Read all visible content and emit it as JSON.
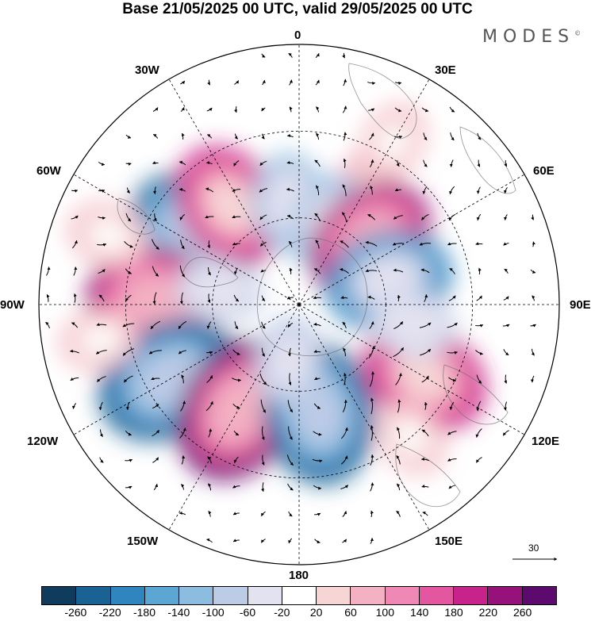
{
  "title": "Base 21/05/2025 00 UTC, valid 29/05/2025 00 UTC",
  "brand": "MODES",
  "brand_mark": "©",
  "longitude_labels": {
    "top": "0",
    "upper_left": "30W",
    "upper_right": "30E",
    "mid_upper_left": "60W",
    "mid_upper_right": "60E",
    "left": "90W",
    "right": "90E",
    "mid_lower_left": "120W",
    "mid_lower_right": "120E",
    "lower_left": "150W",
    "lower_right": "150E",
    "bottom": "180"
  },
  "vector_scale_label": "30",
  "colorbar": {
    "colors": [
      "#0f3b5c",
      "#1a6294",
      "#2f86bf",
      "#5ba6d2",
      "#8cbde0",
      "#bccbe6",
      "#e3e2f0",
      "#ffffff",
      "#f7d5d5",
      "#f3b1c3",
      "#ef88b4",
      "#e2579f",
      "#c7238b",
      "#96127a",
      "#5c0a6d"
    ],
    "labels": [
      "-260",
      "-220",
      "-180",
      "-140",
      "-100",
      "-60",
      "-20",
      "20",
      "60",
      "100",
      "140",
      "180",
      "220",
      "260"
    ]
  },
  "anomaly_centers": [
    {
      "lon": -55,
      "lat": -46,
      "value": -230
    },
    {
      "lon": -35,
      "lat": -48,
      "value": 200
    },
    {
      "lon": -5,
      "lat": -55,
      "value": -120
    },
    {
      "lon": 30,
      "lat": -45,
      "value": 80
    },
    {
      "lon": 20,
      "lat": -60,
      "value": -110
    },
    {
      "lon": 48,
      "lat": -57,
      "value": 220
    },
    {
      "lon": 75,
      "lat": -58,
      "value": -200
    },
    {
      "lon": -88,
      "lat": -40,
      "value": 230
    },
    {
      "lon": -120,
      "lat": -38,
      "value": -260
    },
    {
      "lon": -150,
      "lat": -48,
      "value": 260
    },
    {
      "lon": 170,
      "lat": -52,
      "value": -250
    },
    {
      "lon": 120,
      "lat": -40,
      "value": 210
    },
    {
      "lon": 100,
      "lat": -50,
      "value": -80
    },
    {
      "lon": 140,
      "lat": -30,
      "value": 60
    },
    {
      "lon": -80,
      "lat": -62,
      "value": -80
    },
    {
      "lon": -170,
      "lat": -70,
      "value": -90
    },
    {
      "lon": -70,
      "lat": -20,
      "value": 70
    },
    {
      "lon": -100,
      "lat": -20,
      "value": 60
    },
    {
      "lon": 30,
      "lat": -25,
      "value": 60
    }
  ]
}
